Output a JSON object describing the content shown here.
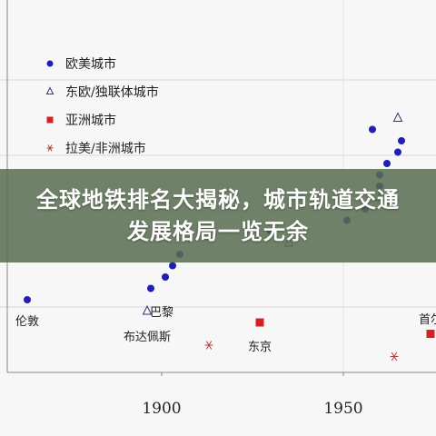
{
  "banner": {
    "title": "全球地铁排名大揭秘，城市轨道交通发展格局一览无余"
  },
  "chart_data": {
    "type": "scatter",
    "title": "",
    "xlabel": "",
    "ylabel": "",
    "xlim": [
      1836,
      1976
    ],
    "x_ticks": [
      "1900",
      "1950"
    ],
    "grid": true,
    "legend_position": "top-left",
    "series": [
      {
        "name": "欧美城市",
        "marker": "circle",
        "color": "#1f1fb4",
        "points": [
          {
            "x": 1863,
            "y": 6
          },
          {
            "x": 1897,
            "y": 7
          },
          {
            "x": 1901,
            "y": 8
          },
          {
            "x": 1903,
            "y": 9
          },
          {
            "x": 1905,
            "y": 10
          },
          {
            "x": 1930,
            "y": 12
          },
          {
            "x": 1951,
            "y": 13
          },
          {
            "x": 1956,
            "y": 14
          },
          {
            "x": 1960,
            "y": 16
          },
          {
            "x": 1960,
            "y": 17
          },
          {
            "x": 1962,
            "y": 18
          },
          {
            "x": 1965,
            "y": 19
          },
          {
            "x": 1966,
            "y": 20
          },
          {
            "x": 1958,
            "y": 21
          }
        ]
      },
      {
        "name": "东欧/独联体城市",
        "marker": "triangle",
        "color": "#33337a",
        "points": [
          {
            "x": 1896,
            "y": 5
          },
          {
            "x": 1935,
            "y": 11
          },
          {
            "x": 1960,
            "y": 15
          },
          {
            "x": 1965,
            "y": 22
          }
        ]
      },
      {
        "name": "亚洲城市",
        "marker": "square",
        "color": "#d42222",
        "points": [
          {
            "x": 1927,
            "y": 4
          },
          {
            "x": 1974,
            "y": 3
          }
        ]
      },
      {
        "name": "拉美/非洲城市",
        "marker": "asterisk",
        "color": "#b04040",
        "points": [
          {
            "x": 1913,
            "y": 2
          },
          {
            "x": 1964,
            "y": 1
          }
        ]
      }
    ],
    "annotations": [
      {
        "text": "伦敦",
        "x": 1863
      },
      {
        "text": "巴黎",
        "x": 1900
      },
      {
        "text": "布达佩斯",
        "x": 1896
      },
      {
        "text": "东京",
        "x": 1927
      },
      {
        "text": "首尔",
        "x": 1974
      }
    ]
  }
}
